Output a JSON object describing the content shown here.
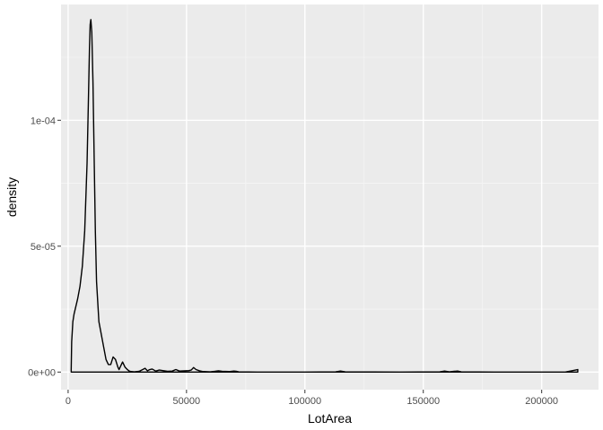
{
  "chart_data": {
    "type": "area",
    "title": "",
    "xlabel": "LotArea",
    "ylabel": "density",
    "xlim": [
      -3000,
      224000
    ],
    "ylim": [
      -7e-06,
      0.000146
    ],
    "x_ticks": [
      {
        "value": 0,
        "label": "0"
      },
      {
        "value": 50000,
        "label": "50000"
      },
      {
        "value": 100000,
        "label": "100000"
      },
      {
        "value": 150000,
        "label": "150000"
      },
      {
        "value": 200000,
        "label": "200000"
      }
    ],
    "y_ticks": [
      {
        "value": 0,
        "label": "0e+00"
      },
      {
        "value": 5e-05,
        "label": "5e-05"
      },
      {
        "value": 0.0001,
        "label": "1e-04"
      }
    ],
    "grid": true,
    "legend": "none",
    "colors": {
      "panel": "#ebebeb",
      "grid": "#ffffff",
      "line": "#000000"
    },
    "series": [
      {
        "x": [
          1300,
          1500,
          2000,
          2500,
          3000,
          4000,
          5000,
          6000,
          7000,
          8000,
          8500,
          9000,
          9300,
          9600,
          10000,
          10500,
          11000,
          11500,
          12000,
          13000,
          14000,
          15000,
          16000,
          17000,
          18000,
          19000,
          20000,
          21000,
          21500,
          22000,
          23000,
          24000,
          25000,
          26000,
          27000,
          28000,
          30000,
          31500,
          32500,
          33500,
          34500,
          35500,
          37000,
          38500,
          40000,
          42000,
          44000,
          45500,
          47000,
          49000,
          51000,
          52000,
          53000,
          54000,
          55500,
          57000,
          60000,
          62000,
          63500,
          65000,
          68000,
          70000,
          71000,
          72000,
          80000,
          100000,
          113000,
          115000,
          117000,
          140000,
          157000,
          159000,
          161000,
          163000,
          164500,
          166000,
          180000,
          200000,
          210000,
          215245
        ],
        "y": [
          1e-06,
          1.2e-05,
          2e-05,
          2.3e-05,
          2.5e-05,
          2.9e-05,
          3.4e-05,
          4.2e-05,
          5.6e-05,
          8.3e-05,
          0.000105,
          0.000128,
          0.000138,
          0.00014,
          0.000135,
          0.000115,
          8.5e-05,
          5.6e-05,
          3.6e-05,
          2e-05,
          1.5e-05,
          1e-05,
          5e-06,
          3e-06,
          3e-06,
          6e-06,
          5e-06,
          2e-06,
          1e-06,
          2e-06,
          4e-06,
          2e-06,
          1e-06,
          3e-07,
          2e-07,
          1e-07,
          3e-07,
          1e-06,
          1.5e-06,
          5e-07,
          1e-06,
          1.2e-06,
          4e-07,
          8e-07,
          6e-07,
          3e-07,
          4e-07,
          1e-06,
          4e-07,
          5e-07,
          6e-07,
          8e-07,
          1.8e-06,
          1e-06,
          5e-07,
          2e-07,
          1e-07,
          3e-07,
          5e-07,
          3e-07,
          2e-07,
          4e-07,
          3e-07,
          1e-07,
          0,
          0,
          1e-07,
          4e-07,
          1e-07,
          0,
          1e-07,
          4e-07,
          1e-07,
          3e-07,
          4e-07,
          1e-07,
          0,
          0,
          0,
          1e-06
        ]
      }
    ]
  }
}
